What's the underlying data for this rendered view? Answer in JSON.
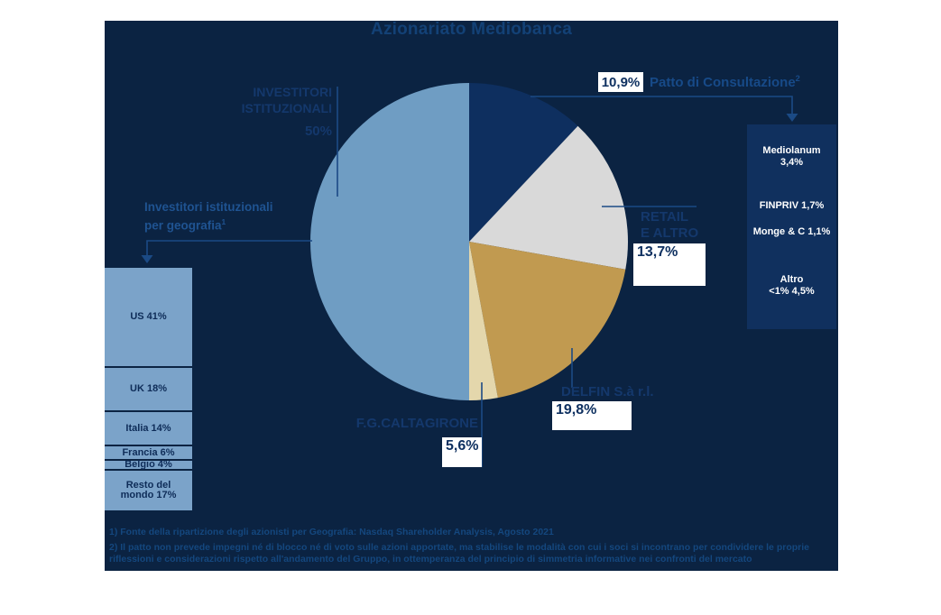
{
  "title": "Azionariato Mediobanca",
  "colors": {
    "page_background": "#ffffff",
    "slide_background": "#0b2342",
    "pie_institutional_blue": "#6f9dc3",
    "pie_patto_navy": "#0e2f5f",
    "pie_retail_gray": "#d9d9d9",
    "pie_delfin_gold": "#c19a50",
    "pie_caltagirone_beige": "#e4d7ac",
    "geo_box_blue": "#7ba3c9",
    "patto_panel_navy": "#10305e",
    "callout_line": "#1b4a85",
    "highlight_box": "#ffffff",
    "title_text": "#134176"
  },
  "chart_data": [
    {
      "type": "pie",
      "title": "Azionariato Mediobanca",
      "start_angle_deg": 0,
      "direction": "clockwise",
      "slices": [
        {
          "label": "Patto di Consultazione",
          "value": 10.9,
          "drawn_pct": 12.0,
          "color": "#0e2f5f"
        },
        {
          "label": "Retail e altro",
          "value": 13.7,
          "drawn_pct": 15.8,
          "color": "#d9d9d9"
        },
        {
          "label": "Delfin S.à r.l.",
          "value": 19.8,
          "drawn_pct": 19.3,
          "color": "#c19a50"
        },
        {
          "label": "F.G. Caltagirone",
          "value": 5.6,
          "drawn_pct": 2.9,
          "color": "#e4d7ac"
        },
        {
          "label": "Investitori istituzionali",
          "value": 50.0,
          "drawn_pct": 50.0,
          "color": "#6f9dc3"
        }
      ]
    },
    {
      "type": "bar",
      "title": "Investitori istituzionali per geografia",
      "categories": [
        "US",
        "UK",
        "Italia",
        "Francia",
        "Belgio",
        "Resto del mondo"
      ],
      "values": [
        41,
        18,
        14,
        6,
        4,
        17
      ],
      "unit": "%"
    },
    {
      "type": "bar",
      "title": "Patto di Consultazione 10,9%",
      "categories": [
        "Mediolanum",
        "FINPRIV",
        "Monge & C",
        "Altro <1%"
      ],
      "values": [
        3.4,
        1.7,
        1.1,
        4.5
      ],
      "unit": "%"
    }
  ],
  "labels": {
    "institutional": {
      "line1": "INVESTITORI",
      "line2": "ISTITUZIONALI",
      "pct": "50%"
    },
    "patto": {
      "pct": "10,9%",
      "name": "Patto di Consultazione",
      "sup": "2"
    },
    "retail": {
      "line1": "RETAIL",
      "line2": "E ALTRO",
      "pct": "13,7%"
    },
    "delfin": {
      "name": "DELFIN S.à r.l.",
      "pct": "19,8%"
    },
    "caltagirone": {
      "name": "F.G.CALTAGIRONE",
      "pct": "5,6%"
    }
  },
  "geo_panel": {
    "title_line1": "Investitori istituzionali",
    "title_line2": "per geografia",
    "title_sup": "1",
    "items": [
      {
        "lines": [
          "US 41%"
        ],
        "value": 41
      },
      {
        "lines": [
          "UK 18%"
        ],
        "value": 18
      },
      {
        "lines": [
          "Italia 14%"
        ],
        "value": 14
      },
      {
        "lines": [
          "Francia 6%"
        ],
        "value": 6
      },
      {
        "lines": [
          "Belgio 4%"
        ],
        "value": 4
      },
      {
        "lines": [
          "Resto del",
          "mondo 17%"
        ],
        "value": 17
      }
    ]
  },
  "patto_panel": {
    "items": [
      {
        "lines": [
          "Mediolanum",
          "3,4%"
        ],
        "value": 3.4
      },
      {
        "lines": [
          "FINPRIV 1,7%"
        ],
        "value": 1.7
      },
      {
        "lines": [
          "Monge & C 1,1%"
        ],
        "value": 1.1
      },
      {
        "lines": [
          "Altro",
          "<1% 4,5%"
        ],
        "value": 4.5
      }
    ]
  },
  "footnotes": {
    "fn1": "1) Fonte della ripartizione degli azionisti per Geografia: Nasdaq Shareholder Analysis, Agosto 2021",
    "fn2": "2) Il patto non prevede impegni né di blocco né di voto sulle azioni apportate, ma stabilise le modalità con cui i soci si incontrano per condividere le proprie riflessioni e considerazioni rispetto all'andamento del Gruppo, in ottemperanza del principio di simmetria informative nei confronti del mercato"
  }
}
